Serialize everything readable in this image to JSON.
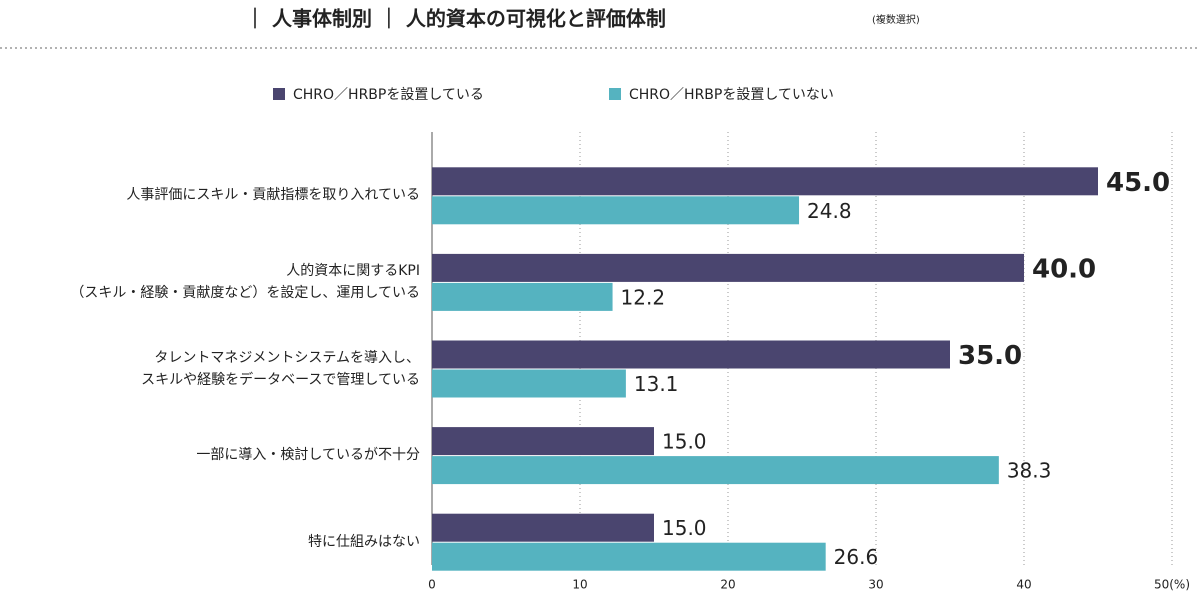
{
  "chart_data": {
    "type": "hbar",
    "title": "｜ 人事体制別 ｜ 人的資本の可視化と評価体制",
    "subtitle": "(複数選択)",
    "categories": [
      "人事評価にスキル・貢献指標を取り入れている",
      "人的資本に関するKPI\n（スキル・経験・貢献度など）を設定し、運用している",
      "タレントマネジメントシステムを導入し、\nスキルや経験をデータベースで管理している",
      "一部に導入・検討しているが不十分",
      "特に仕組みはない"
    ],
    "series": [
      {
        "name": "CHRO／HRBPを設置している",
        "color": "#4a456f",
        "values": [
          45,
          40,
          35,
          15,
          15
        ],
        "value_labels": [
          "45.0",
          "40.0",
          "35.0",
          "15.0",
          "15.0"
        ],
        "value_label_colors": [
          "#b3141c",
          "#b3141c",
          "#b3141c",
          "#222222",
          "#222222"
        ]
      },
      {
        "name": "CHRO／HRBPを設置していない",
        "color": "#55b3c0",
        "values": [
          24.8,
          12.2,
          13.1,
          38.3,
          26.6
        ],
        "value_labels": [
          "24.8",
          "12.2",
          "13.1",
          "38.3",
          "26.6"
        ],
        "value_label_colors": [
          "#222222",
          "#222222",
          "#222222",
          "#222222",
          "#222222"
        ]
      }
    ],
    "xlim": [
      0,
      50
    ],
    "xticks": [
      0,
      10,
      20,
      30,
      40,
      {
        "value": 50,
        "label": "50(%)"
      }
    ],
    "grid": true
  }
}
